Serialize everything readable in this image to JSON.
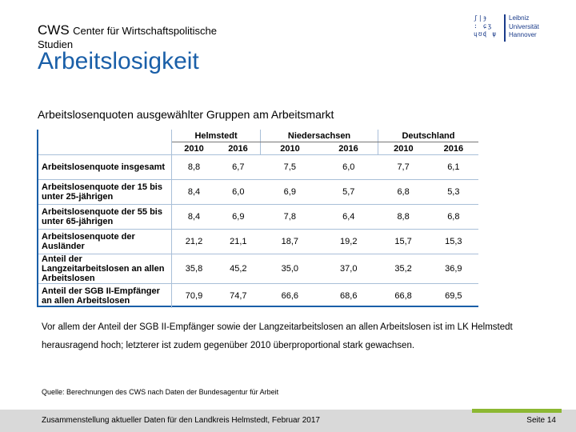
{
  "header": {
    "org_abbr": "CWS",
    "org_name": "Center für Wirtschaftspolitische",
    "org_name_line2": "Studien",
    "logo_lines": [
      "Leibniz",
      "Universität",
      "Hannover"
    ],
    "logo_mark": "ʃ|ɟ\n: ɕʒ\nɥʊɖ ψ"
  },
  "title": "Arbeitslosigkeit",
  "subtitle": "Arbeitslosenquoten ausgewählter Gruppen am Arbeitsmarkt",
  "table": {
    "groups": [
      "Helmstedt",
      "Niedersachsen",
      "Deutschland"
    ],
    "years": [
      "2010",
      "2016",
      "2010",
      "2016",
      "2010",
      "2016"
    ],
    "rows": [
      {
        "label": "Arbeitslosenquote insgesamt",
        "values": [
          "8,8",
          "6,7",
          "7,5",
          "6,0",
          "7,7",
          "6,1"
        ]
      },
      {
        "label": "Arbeitslosenquote der 15 bis unter 25-jährigen",
        "values": [
          "8,4",
          "6,0",
          "6,9",
          "5,7",
          "6,8",
          "5,3"
        ]
      },
      {
        "label": "Arbeitslosenquote der 55 bis unter 65-jährigen",
        "values": [
          "8,4",
          "6,9",
          "7,8",
          "6,4",
          "8,8",
          "6,8"
        ]
      },
      {
        "label": "Arbeitslosenquote der Ausländer",
        "values": [
          "21,2",
          "21,1",
          "18,7",
          "19,2",
          "15,7",
          "15,3"
        ]
      },
      {
        "label": "Anteil der Langzeitarbeitslosen an allen Arbeitslosen",
        "values": [
          "35,8",
          "45,2",
          "35,0",
          "37,0",
          "35,2",
          "36,9"
        ]
      },
      {
        "label": "Anteil der SGB II-Empfänger an allen Arbeitslosen",
        "values": [
          "70,9",
          "74,7",
          "66,6",
          "68,6",
          "66,8",
          "69,5"
        ]
      }
    ]
  },
  "note": "Vor allem der Anteil der SGB II-Empfänger sowie der Langzeitarbeitslosen an allen Arbeitslosen ist im LK Helmstedt herausragend hoch; letzterer ist zudem gegenüber 2010 überproportional stark gewachsen.",
  "source": "Quelle: Berechnungen des CWS nach Daten der Bundesagentur für Arbeit",
  "footer": {
    "left": "Zusammenstellung aktueller Daten für den Landkreis Helmstedt, Februar 2017",
    "right": "Seite 14"
  },
  "colors": {
    "title": "#1a5fa8",
    "accent_bar": "#8cb832",
    "logo": "#1a3b8a"
  }
}
